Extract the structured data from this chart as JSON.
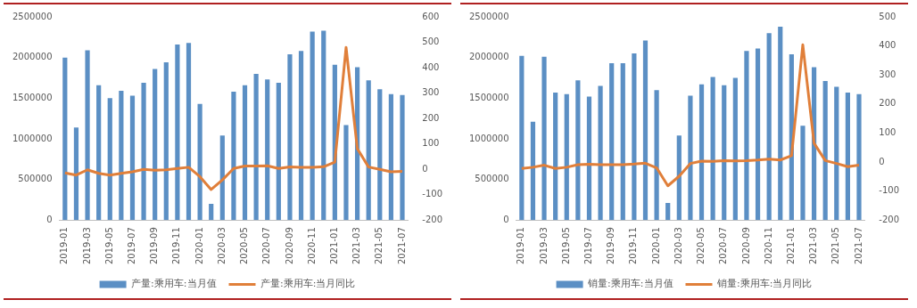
{
  "chart_data": [
    {
      "type": "bar",
      "categories": [
        "2019-01",
        null,
        "2019-03",
        null,
        "2019-05",
        null,
        "2019-07",
        null,
        "2019-09",
        null,
        "2019-11",
        null,
        "2020-01",
        null,
        "2020-03",
        null,
        "2020-05",
        null,
        "2020-07",
        null,
        "2020-09",
        null,
        "2020-11",
        null,
        "2021-01",
        null,
        "2021-03",
        null,
        "2021-05",
        null,
        "2021-07"
      ],
      "series": [
        {
          "name": "产量:乘用车:当月值",
          "color": "#5b8fc4",
          "values": [
            2000000,
            1140000,
            2090000,
            1660000,
            1500000,
            1590000,
            1530000,
            1690000,
            1860000,
            1940000,
            2160000,
            2180000,
            1430000,
            200000,
            1040000,
            1580000,
            1660000,
            1800000,
            1730000,
            1690000,
            2040000,
            2080000,
            2320000,
            2330000,
            1910000,
            1170000,
            1880000,
            1720000,
            1610000,
            1550000,
            1540000
          ]
        },
        {
          "name": "产量:乘用车:当月同比",
          "type": "line",
          "axis": "y2",
          "color": "#e07f3a",
          "values": [
            -14,
            -23,
            -2,
            -16,
            -23,
            -16,
            -10,
            0,
            -4,
            -2,
            3,
            8,
            -29,
            -80,
            -42,
            3,
            13,
            13,
            14,
            3,
            9,
            8,
            8,
            10,
            28,
            480,
            81,
            9,
            0,
            -10,
            -8
          ]
        }
      ],
      "ylim": [
        0,
        2500000
      ],
      "yticks": [
        0,
        500000,
        1000000,
        1500000,
        2000000,
        2500000
      ],
      "y2lim": [
        -200,
        600
      ],
      "y2ticks": [
        -200,
        -100,
        0,
        100,
        200,
        300,
        400,
        500,
        600
      ],
      "legend": "bottom",
      "grid": false,
      "marker": "none"
    },
    {
      "type": "bar",
      "categories": [
        "2019-01",
        null,
        "2019-03",
        null,
        "2019-05",
        null,
        "2019-07",
        null,
        "2019-09",
        null,
        "2019-11",
        null,
        "2020-01",
        null,
        "2020-03",
        null,
        "2020-05",
        null,
        "2020-07",
        null,
        "2020-09",
        null,
        "2020-11",
        null,
        "2021-01",
        null,
        "2021-03",
        null,
        "2021-05",
        null,
        "2021-07"
      ],
      "series": [
        {
          "name": "销量:乘用车:当月值",
          "color": "#5b8fc4",
          "values": [
            2020000,
            1210000,
            2010000,
            1570000,
            1550000,
            1720000,
            1520000,
            1650000,
            1930000,
            1930000,
            2050000,
            2210000,
            1600000,
            210000,
            1040000,
            1530000,
            1670000,
            1760000,
            1660000,
            1750000,
            2080000,
            2110000,
            2300000,
            2380000,
            2040000,
            1160000,
            1880000,
            1710000,
            1640000,
            1570000,
            1550000
          ]
        },
        {
          "name": "销量:乘用车:当月同比",
          "type": "line",
          "axis": "y2",
          "color": "#e07f3a",
          "values": [
            -22,
            -18,
            -11,
            -22,
            -18,
            -9,
            -8,
            -9,
            -9,
            -9,
            -7,
            -4,
            -20,
            -82,
            -49,
            -5,
            3,
            2,
            5,
            4,
            5,
            7,
            10,
            7,
            22,
            404,
            65,
            5,
            -5,
            -16,
            -11
          ]
        }
      ],
      "ylim": [
        0,
        2500000
      ],
      "yticks": [
        0,
        500000,
        1000000,
        1500000,
        2000000,
        2500000
      ],
      "y2lim": [
        -200,
        500
      ],
      "y2ticks": [
        -200,
        -100,
        0,
        100,
        200,
        300,
        400,
        500
      ],
      "legend": "bottom",
      "grid": false,
      "marker": "none"
    }
  ]
}
